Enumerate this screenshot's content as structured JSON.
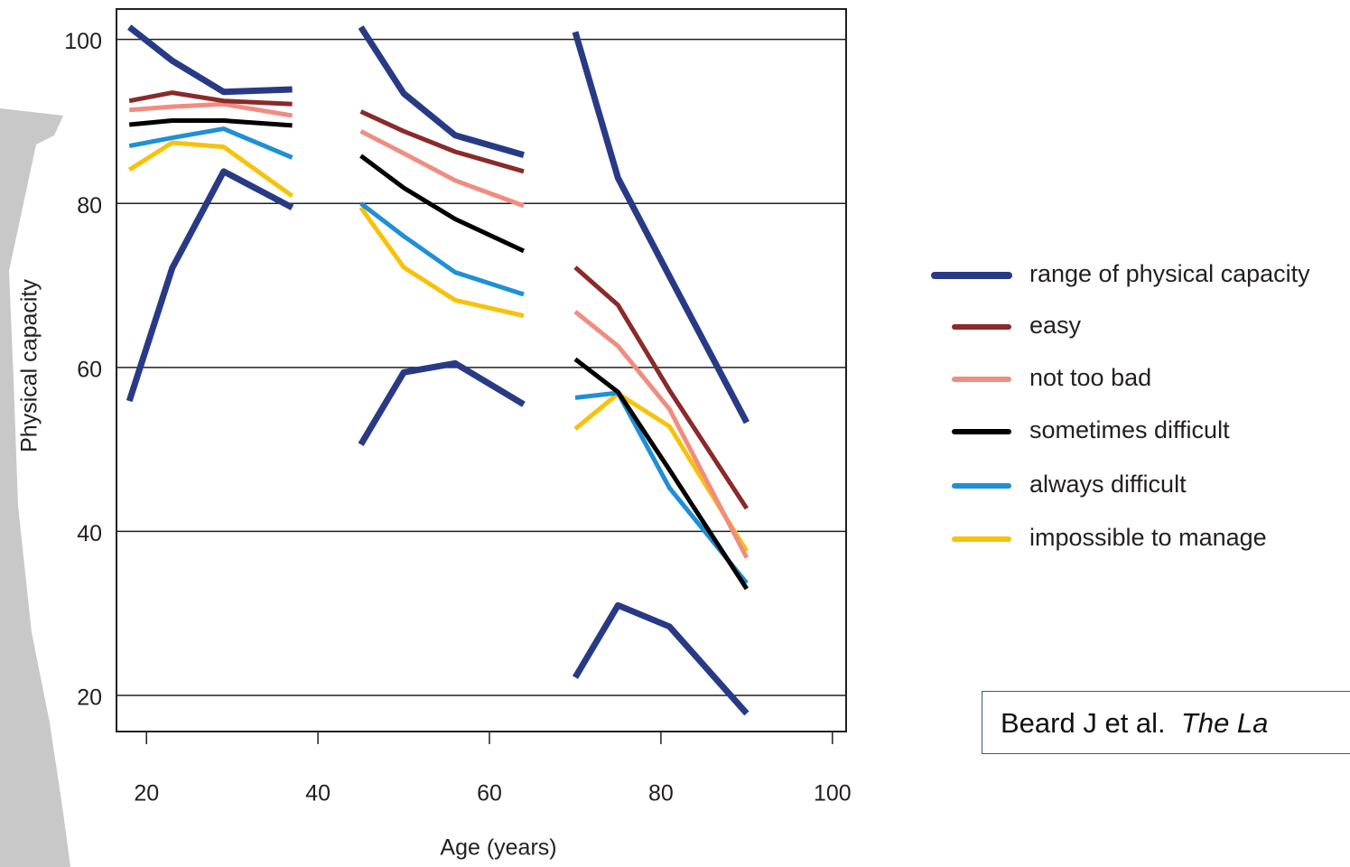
{
  "chart_data": {
    "type": "line",
    "x_label": "Age (years)",
    "y_label": "Physical capacity",
    "xlim": [
      16.5,
      101.6
    ],
    "ylim": [
      15.6,
      103.7
    ],
    "xticks": [
      20,
      40,
      60,
      80,
      100
    ],
    "yticks": [
      20,
      40,
      60,
      80,
      100
    ],
    "grid": true,
    "x": [
      18,
      23,
      29,
      37,
      null,
      45,
      50,
      56,
      64,
      null,
      70,
      75,
      81,
      90
    ],
    "series": [
      {
        "name": "range of physical capacity",
        "color": "#283a86",
        "values": [
          101.5,
          97.4,
          93.6,
          93.9,
          null,
          101.5,
          93.4,
          88.3,
          85.9,
          null,
          100.9,
          83.1,
          71.1,
          53.3
        ],
        "lower": [
          55.9,
          72.1,
          83.9,
          79.5,
          null,
          50.6,
          59.4,
          60.5,
          55.5,
          null,
          22.2,
          31.0,
          28.4,
          17.8
        ]
      },
      {
        "name": "easy",
        "color": "#8b2a2a",
        "values": [
          92.5,
          93.5,
          92.5,
          92.1,
          null,
          91.2,
          88.8,
          86.3,
          83.9,
          null,
          72.2,
          67.6,
          57.2,
          42.8
        ]
      },
      {
        "name": "not too bad",
        "color": "#f08c80",
        "values": [
          91.4,
          91.8,
          92.1,
          90.7,
          null,
          88.8,
          86.1,
          82.8,
          79.7,
          null,
          66.8,
          62.6,
          54.9,
          36.8
        ]
      },
      {
        "name": "sometimes difficult",
        "color": "#000000",
        "values": [
          89.6,
          90.1,
          90.1,
          89.5,
          null,
          85.8,
          81.9,
          78.1,
          74.2,
          null,
          61.0,
          57.0,
          47.5,
          33.0
        ]
      },
      {
        "name": "always difficult",
        "color": "#1f8fd6",
        "values": [
          87.0,
          88.0,
          89.1,
          85.6,
          null,
          80.0,
          76.0,
          71.6,
          68.9,
          null,
          56.3,
          56.9,
          45.3,
          33.7
        ]
      },
      {
        "name": "impossible to manage",
        "color": "#f7c20a",
        "values": [
          84.1,
          87.4,
          86.9,
          80.9,
          null,
          79.5,
          72.2,
          68.2,
          66.3,
          null,
          52.5,
          56.8,
          52.8,
          37.6
        ]
      }
    ]
  },
  "citation": {
    "authors": "Beard J et al.",
    "journal": "The La"
  }
}
